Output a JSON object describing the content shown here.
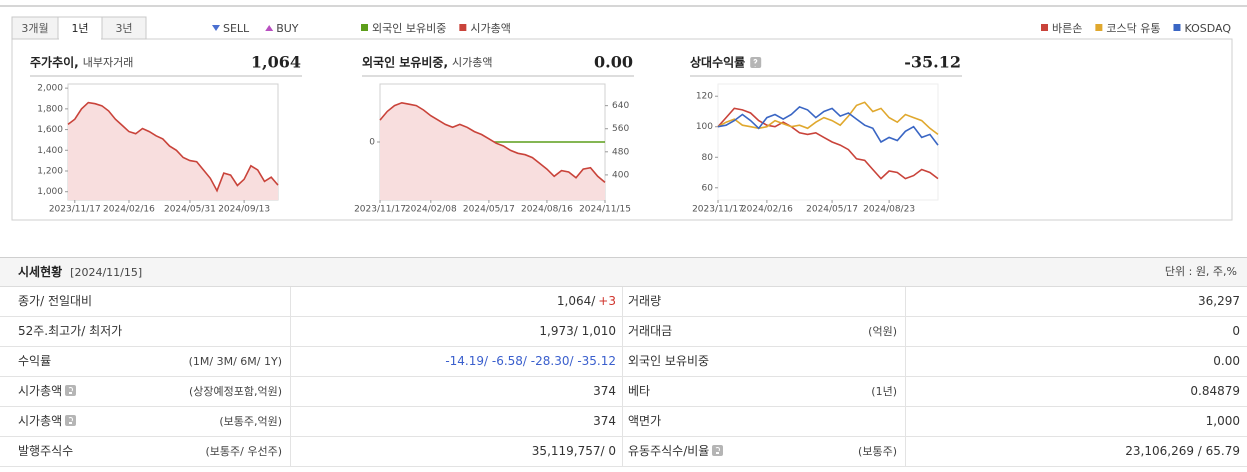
{
  "tabs": [
    "3개월",
    "1년",
    "3년"
  ],
  "active_tab": 1,
  "chart_data": [
    {
      "type": "area",
      "title": "주가추이,",
      "subtitle": "내부자거래",
      "current": "1,064",
      "legend": [
        {
          "name": "SELL",
          "color": "#4a6fd0",
          "marker": "triangle-down"
        },
        {
          "name": "BUY",
          "color": "#b84fc0",
          "marker": "triangle-up"
        }
      ],
      "categories": [
        null,
        "2023/11/17",
        null,
        null,
        null,
        null,
        null,
        null,
        null,
        "2024/02/16",
        null,
        null,
        null,
        null,
        null,
        null,
        null,
        null,
        "2024/05/31",
        null,
        null,
        null,
        null,
        null,
        null,
        null,
        "2024/09/13",
        null,
        null,
        null,
        null,
        null
      ],
      "values": [
        1650,
        1700,
        1800,
        1860,
        1850,
        1830,
        1780,
        1700,
        1640,
        1580,
        1560,
        1610,
        1580,
        1540,
        1510,
        1440,
        1400,
        1330,
        1300,
        1290,
        1210,
        1130,
        1010,
        1180,
        1160,
        1060,
        1120,
        1250,
        1210,
        1100,
        1140,
        1064
      ],
      "color": "#c9433a",
      "fill": "#f8dede",
      "ylim": [
        920,
        2040
      ],
      "yticks": [
        {
          "value": 1000,
          "label": "1,000"
        },
        {
          "value": 1200,
          "label": "1,200"
        },
        {
          "value": 1400,
          "label": "1,400"
        },
        {
          "value": 1600,
          "label": "1,600"
        },
        {
          "value": 1800,
          "label": "1,800"
        },
        {
          "value": 2000,
          "label": "2,000"
        }
      ]
    },
    {
      "type": "line",
      "title": "외국인 보유비중,",
      "subtitle": "시가총액",
      "current": "0.00",
      "categories": [
        "2023/11/17",
        null,
        null,
        null,
        null,
        null,
        null,
        "2024/02/08",
        null,
        null,
        null,
        null,
        null,
        null,
        null,
        "2024/05/17",
        null,
        null,
        null,
        null,
        null,
        null,
        null,
        "2024/08/16",
        null,
        null,
        null,
        null,
        null,
        null,
        null,
        "2024/11/15"
      ],
      "series": [
        {
          "name": "외국인 보유비중",
          "color": "#5c9e1a",
          "values": [
            0,
            0,
            0,
            0,
            0,
            0,
            0,
            0,
            0,
            0,
            0,
            0,
            0,
            0,
            0,
            0,
            0,
            0,
            0,
            0,
            0,
            0,
            0,
            0,
            0,
            0,
            0,
            0,
            0,
            0,
            0,
            0
          ]
        },
        {
          "name": "시가총액",
          "color": "#c9433a",
          "fill": "#f8dede",
          "axis": "y2",
          "values": [
            590,
            620,
            640,
            650,
            645,
            640,
            625,
            605,
            590,
            575,
            565,
            575,
            565,
            550,
            540,
            525,
            510,
            500,
            485,
            475,
            470,
            460,
            440,
            420,
            395,
            415,
            410,
            390,
            420,
            425,
            395,
            374
          ]
        }
      ],
      "ylim": [
        -1,
        1
      ],
      "yticks": [
        0
      ],
      "y2lim": [
        313,
        715
      ],
      "y2ticks": [
        400,
        480,
        560,
        640
      ]
    },
    {
      "type": "line",
      "title": "상대수익률",
      "help": true,
      "current": "-35.12",
      "categories": [
        "2023/11/17",
        null,
        null,
        null,
        null,
        null,
        "2024/02/16",
        null,
        null,
        null,
        null,
        null,
        null,
        null,
        "2024/05/17",
        null,
        null,
        null,
        null,
        null,
        null,
        "2024/08/23",
        null,
        null,
        null,
        null,
        null,
        null
      ],
      "series": [
        {
          "name": "바른손",
          "color": "#c9433a",
          "values": [
            100,
            106,
            112,
            111,
            109,
            104,
            101,
            100,
            103,
            100,
            96,
            95,
            96,
            93,
            90,
            88,
            85,
            79,
            78,
            72,
            66,
            71,
            70,
            66,
            68,
            72,
            70,
            66
          ]
        },
        {
          "name": "코스닥 유통",
          "color": "#e0a82e",
          "values": [
            100,
            103,
            105,
            101,
            100,
            99,
            100,
            104,
            102,
            100,
            101,
            99,
            103,
            106,
            104,
            101,
            107,
            114,
            116,
            110,
            112,
            106,
            103,
            108,
            106,
            104,
            99,
            95
          ]
        },
        {
          "name": "KOSDAQ",
          "color": "#3a66c4",
          "values": [
            100,
            101,
            104,
            108,
            104,
            99,
            106,
            108,
            105,
            108,
            113,
            111,
            106,
            110,
            112,
            107,
            109,
            105,
            101,
            99,
            90,
            93,
            91,
            97,
            100,
            93,
            95,
            88
          ]
        }
      ],
      "ylim": [
        52,
        128
      ],
      "yticks": [
        60,
        80,
        100,
        120
      ]
    }
  ],
  "table": {
    "title": "시세현황",
    "date": "[2024/11/15]",
    "unit": "단위 : 원, 주,%",
    "rows": [
      {
        "label": "종가/ 전일대비",
        "value": "1,064/",
        "change": "+3",
        "change_color": "#d0342c",
        "label2": "거래량",
        "value2": "36,297"
      },
      {
        "label": "52주.최고가/ 최저가",
        "value": "1,973/ 1,010",
        "label2": "거래대금",
        "note2": "(억원)",
        "value2": "0"
      },
      {
        "label": "수익률",
        "note": "(1M/ 3M/ 6M/ 1Y)",
        "value": "-14.19/ -6.58/ -28.30/ -35.12",
        "value_color": "#3a5fcd",
        "label2": "외국인 보유비중",
        "value2": "0.00"
      },
      {
        "label": "시가총액",
        "help": true,
        "note": "(상장예정포함,억원)",
        "value": "374",
        "label2": "베타",
        "note2": "(1년)",
        "value2": "0.84879"
      },
      {
        "label": "시가총액",
        "help": true,
        "note": "(보통주,억원)",
        "value": "374",
        "label2": "액면가",
        "value2": "1,000"
      },
      {
        "label": "발행주식수",
        "note": "(보통주/ 우선주)",
        "value": "35,119,757/ 0",
        "label2": "유동주식수/비율",
        "help2": true,
        "note2": "(보통주)",
        "value2": "23,106,269 / 65.79"
      }
    ]
  }
}
